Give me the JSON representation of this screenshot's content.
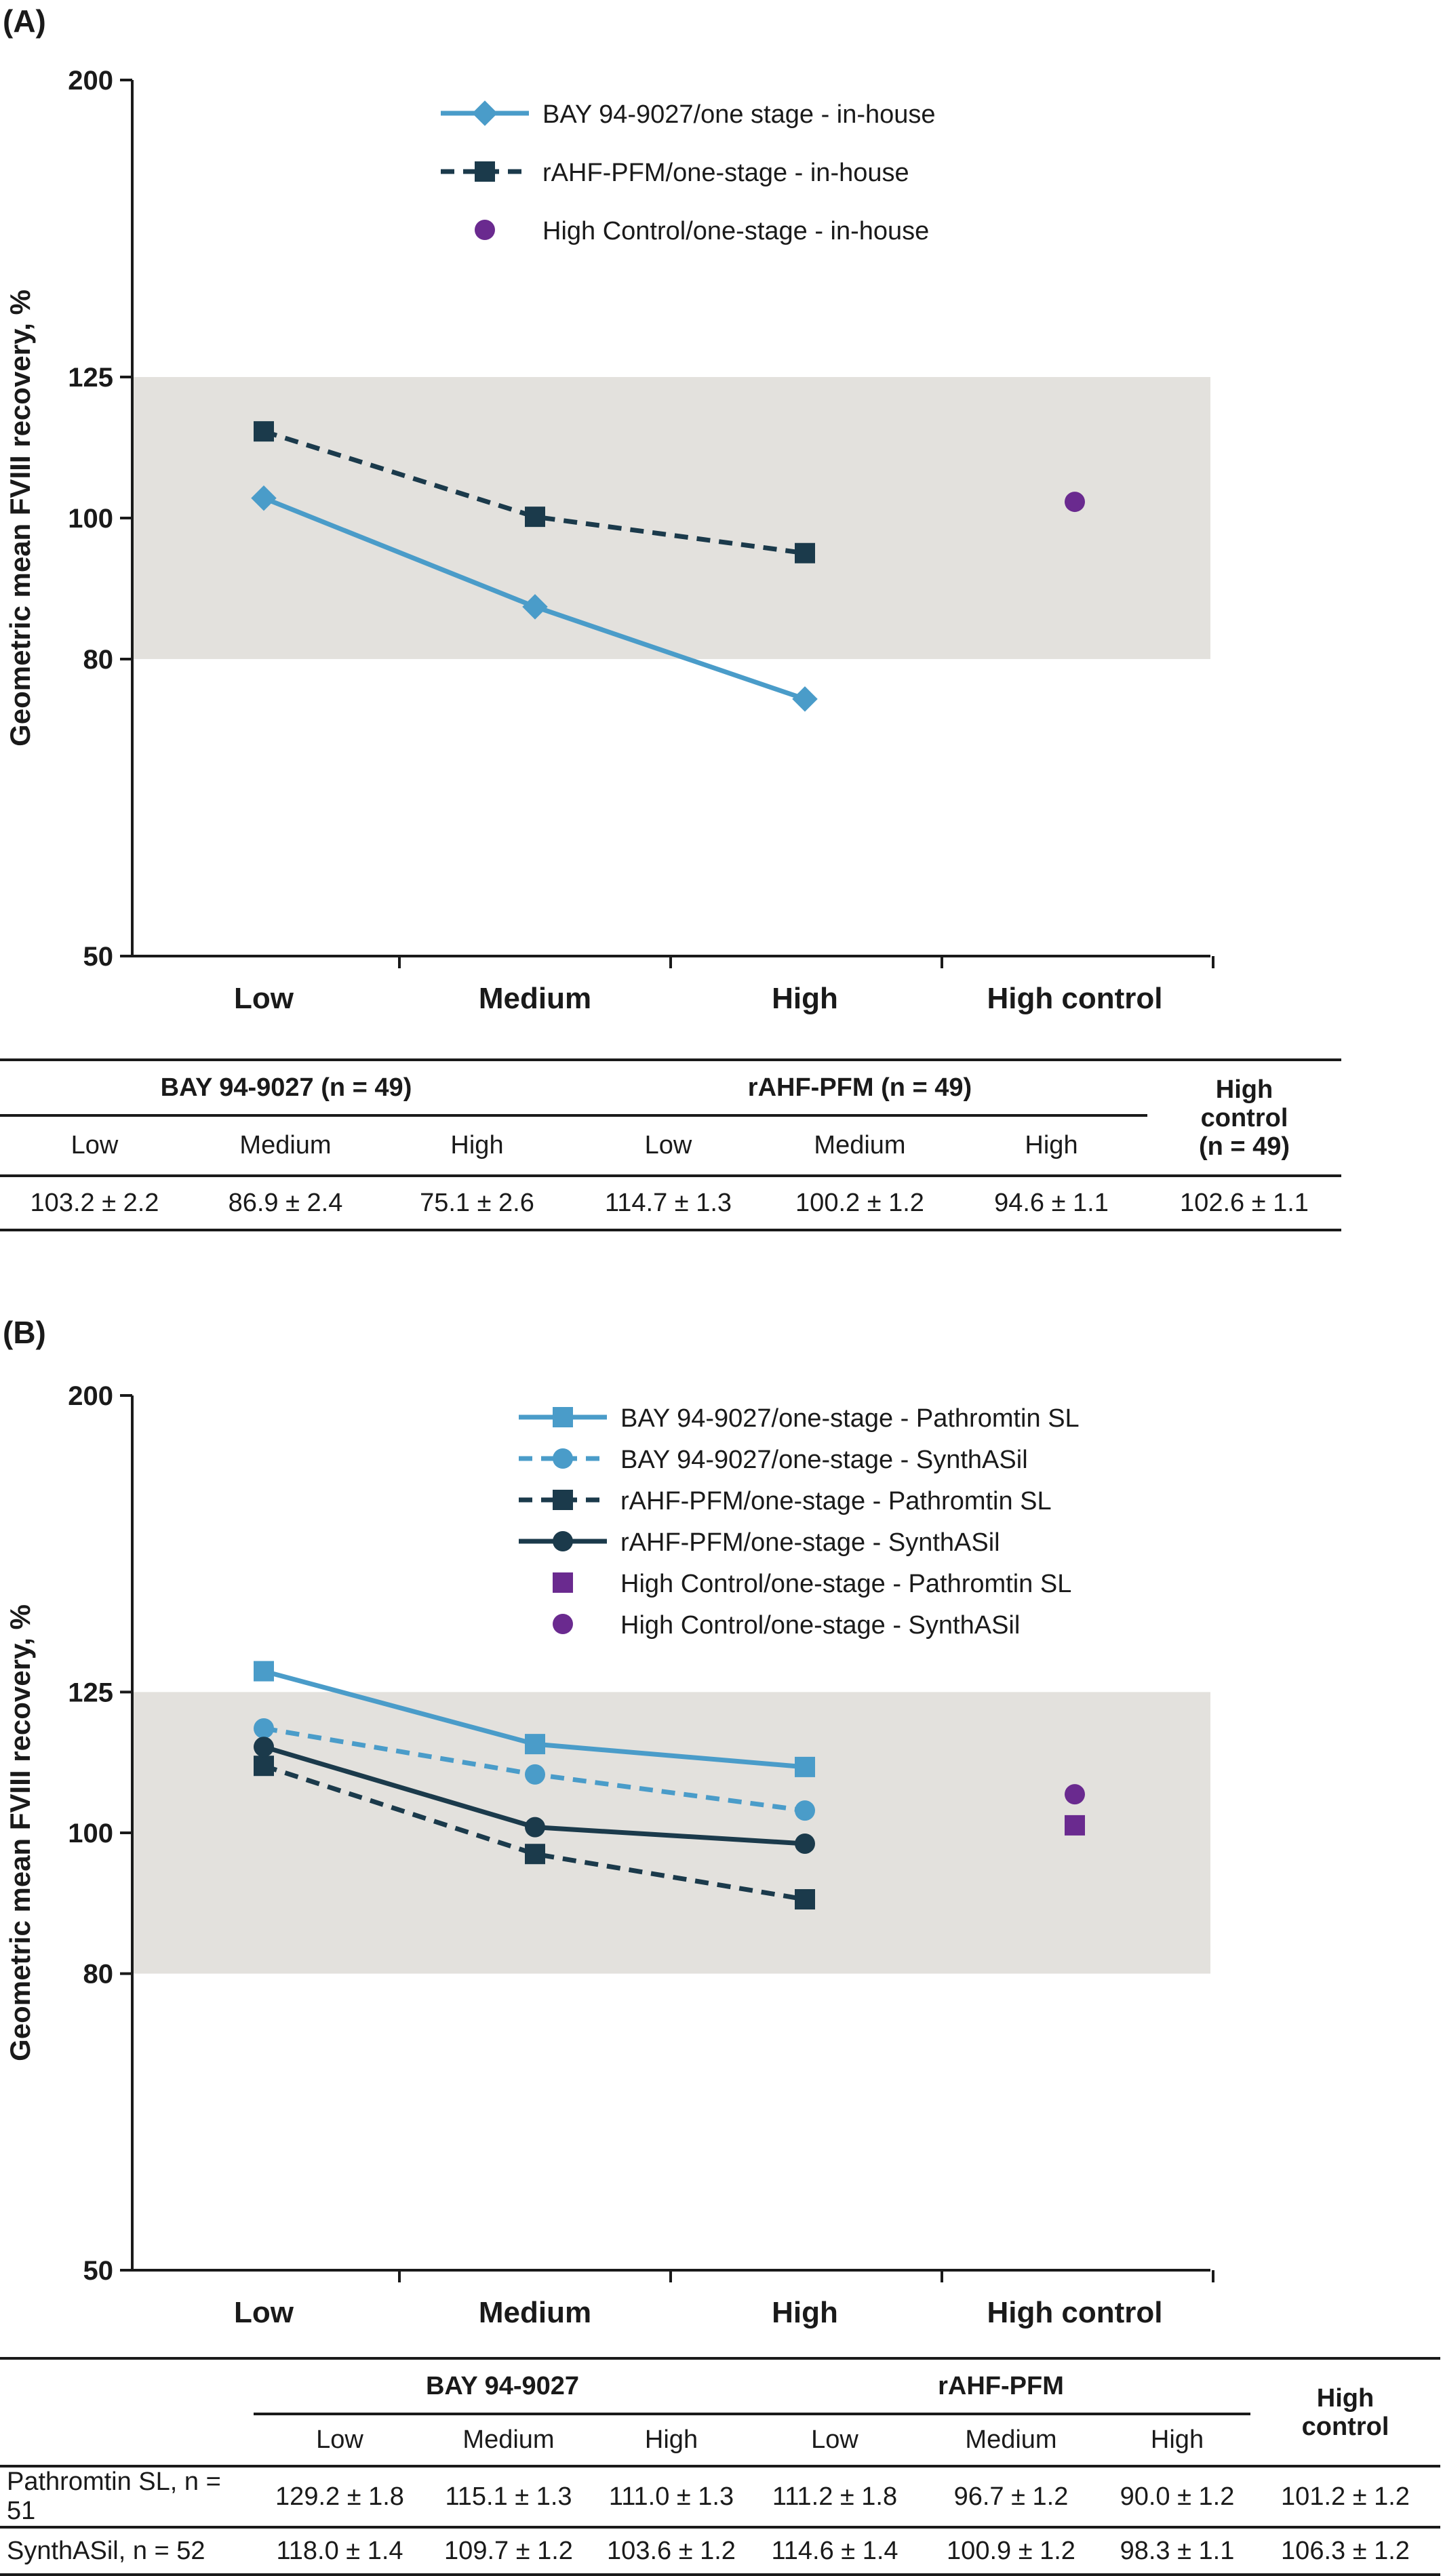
{
  "panel_a": {
    "label": "(A)",
    "legend": [
      {
        "label": "BAY 94-9027/one stage - in-house",
        "marker": "diamond-icon",
        "line": "solid",
        "color": "#4a9cc9"
      },
      {
        "label": "rAHF-PFM/one-stage - in-house",
        "marker": "square-icon",
        "line": "dashed",
        "color": "#1b3a4b"
      },
      {
        "label": "High Control/one-stage - in-house",
        "marker": "circle-icon",
        "line": "none",
        "color": "#6a2a8f"
      }
    ],
    "table": {
      "groups": [
        "BAY 94-9027 (n = 49)",
        "rAHF-PFM (n = 49)"
      ],
      "control_header": [
        "High",
        "control",
        "(n = 49)"
      ],
      "subheaders": [
        "Low",
        "Medium",
        "High",
        "Low",
        "Medium",
        "High"
      ],
      "row": [
        "103.2 ± 2.2",
        "86.9 ± 2.4",
        "75.1 ± 2.6",
        "114.7 ± 1.3",
        "100.2 ± 1.2",
        "94.6 ± 1.1",
        "102.6 ± 1.1"
      ]
    }
  },
  "panel_b": {
    "label": "(B)",
    "legend": [
      {
        "label": "BAY 94-9027/one-stage - Pathromtin SL",
        "marker": "square-icon",
        "line": "solid",
        "color": "#4a9cc9"
      },
      {
        "label": "BAY 94-9027/one-stage - SynthASil",
        "marker": "circle-icon",
        "line": "dashed",
        "color": "#4a9cc9"
      },
      {
        "label": "rAHF-PFM/one-stage - Pathromtin SL",
        "marker": "square-icon",
        "line": "dashed",
        "color": "#1b3a4b"
      },
      {
        "label": "rAHF-PFM/one-stage - SynthASil",
        "marker": "circle-icon",
        "line": "solid",
        "color": "#1b3a4b"
      },
      {
        "label": "High Control/one-stage - Pathromtin SL",
        "marker": "square-icon",
        "line": "none",
        "color": "#6a2a8f"
      },
      {
        "label": "High Control/one-stage - SynthASil",
        "marker": "circle-icon",
        "line": "none",
        "color": "#6a2a8f"
      }
    ],
    "table": {
      "groups": [
        "BAY 94-9027",
        "rAHF-PFM"
      ],
      "control_header": [
        "High",
        "control"
      ],
      "subheaders": [
        "Low",
        "Medium",
        "High",
        "Low",
        "Medium",
        "High"
      ],
      "rows": [
        {
          "label": "Pathromtin SL, n = 51",
          "values": [
            "129.2 ± 1.8",
            "115.1 ± 1.3",
            "111.0 ± 1.3",
            "111.2 ± 1.8",
            "96.7 ± 1.2",
            "90.0 ± 1.2",
            "101.2 ± 1.2"
          ]
        },
        {
          "label": "SynthASil, n = 52",
          "values": [
            "118.0 ± 1.4",
            "109.7 ± 1.2",
            "103.6 ± 1.2",
            "114.6 ± 1.4",
            "100.9 ± 1.2",
            "98.3 ± 1.1",
            "106.3 ± 1.2"
          ]
        }
      ]
    }
  },
  "chart_data": [
    {
      "type": "line",
      "title": "",
      "xlabel": "",
      "ylabel": "Geometric mean FVIII recovery, %",
      "categories": [
        "Low",
        "Medium",
        "High",
        "High control"
      ],
      "y_scale": "log",
      "ylim": [
        50,
        200
      ],
      "yticks": [
        50,
        80,
        100,
        125,
        200
      ],
      "shaded_band": [
        80,
        125
      ],
      "shaded_band_color": "#e3e1dd",
      "series": [
        {
          "name": "BAY 94-9027/one stage - in-house",
          "values": [
            103.2,
            86.9,
            75.1,
            null
          ],
          "color": "#4a9cc9",
          "marker": "diamond",
          "dashed": false
        },
        {
          "name": "rAHF-PFM/one-stage - in-house",
          "values": [
            114.7,
            100.2,
            94.6,
            null
          ],
          "color": "#1b3a4b",
          "marker": "square",
          "dashed": true
        },
        {
          "name": "High Control/one-stage - in-house",
          "values": [
            null,
            null,
            null,
            102.6
          ],
          "color": "#6a2a8f",
          "marker": "circle",
          "dashed": false
        }
      ]
    },
    {
      "type": "line",
      "title": "",
      "xlabel": "",
      "ylabel": "Geometric mean FVIII recovery, %",
      "categories": [
        "Low",
        "Medium",
        "High",
        "High control"
      ],
      "y_scale": "log",
      "ylim": [
        50,
        200
      ],
      "yticks": [
        50,
        80,
        100,
        125,
        200
      ],
      "shaded_band": [
        80,
        125
      ],
      "shaded_band_color": "#e3e1dd",
      "series": [
        {
          "name": "BAY 94-9027/one-stage - Pathromtin SL",
          "values": [
            129.2,
            115.1,
            111.0,
            null
          ],
          "color": "#4a9cc9",
          "marker": "square",
          "dashed": false
        },
        {
          "name": "BAY 94-9027/one-stage - SynthASil",
          "values": [
            118.0,
            109.7,
            103.6,
            null
          ],
          "color": "#4a9cc9",
          "marker": "circle",
          "dashed": true
        },
        {
          "name": "rAHF-PFM/one-stage - Pathromtin SL",
          "values": [
            111.2,
            96.7,
            90.0,
            null
          ],
          "color": "#1b3a4b",
          "marker": "square",
          "dashed": true
        },
        {
          "name": "rAHF-PFM/one-stage - SynthASil",
          "values": [
            114.6,
            100.9,
            98.3,
            null
          ],
          "color": "#1b3a4b",
          "marker": "circle",
          "dashed": false
        },
        {
          "name": "High Control/one-stage - Pathromtin SL",
          "values": [
            null,
            null,
            null,
            101.2
          ],
          "color": "#6a2a8f",
          "marker": "square",
          "dashed": false
        },
        {
          "name": "High Control/one-stage - SynthASil",
          "values": [
            null,
            null,
            null,
            106.3
          ],
          "color": "#6a2a8f",
          "marker": "circle",
          "dashed": false
        }
      ]
    }
  ]
}
